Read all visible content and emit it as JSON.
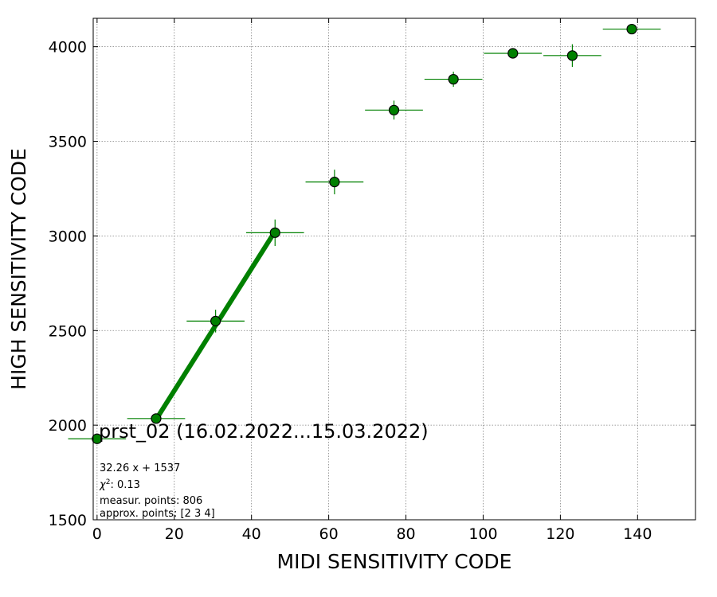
{
  "chart_data": {
    "type": "scatter",
    "title": "prst_02 (16.02.2022...15.03.2022)",
    "xlabel": "MIDI SENSITIVITY CODE",
    "ylabel": "HIGH SENSITIVITY CODE",
    "xlim": [
      -1,
      155
    ],
    "ylim": [
      1500,
      4150
    ],
    "xticks": [
      0,
      20,
      40,
      60,
      80,
      100,
      120,
      140
    ],
    "yticks": [
      1500,
      2000,
      2500,
      3000,
      3500,
      4000
    ],
    "grid": true,
    "series": [
      {
        "color": "#008000",
        "points": [
          {
            "x": 0,
            "y": 1928,
            "xerr": 7.5,
            "yerr": 0
          },
          {
            "x": 15.3,
            "y": 2035,
            "xerr": 7.5,
            "yerr": 0
          },
          {
            "x": 30.7,
            "y": 2550,
            "xerr": 7.5,
            "yerr": 60
          },
          {
            "x": 46.1,
            "y": 3017,
            "xerr": 7.5,
            "yerr": 70
          },
          {
            "x": 61.5,
            "y": 3285,
            "xerr": 7.5,
            "yerr": 65
          },
          {
            "x": 76.9,
            "y": 3665,
            "xerr": 7.5,
            "yerr": 50
          },
          {
            "x": 92.3,
            "y": 3828,
            "xerr": 7.5,
            "yerr": 40
          },
          {
            "x": 107.7,
            "y": 3965,
            "xerr": 7.5,
            "yerr": 0
          },
          {
            "x": 123.1,
            "y": 3953,
            "xerr": 7.5,
            "yerr": 60
          },
          {
            "x": 138.5,
            "y": 4093,
            "xerr": 7.5,
            "yerr": 0
          }
        ]
      }
    ],
    "fit": {
      "color": "#008000",
      "slope": 32.26,
      "intercept": 1537,
      "x_from": 15.3,
      "x_to": 46.1
    },
    "annotations": [
      "32.26 x + 1537",
      "measur. points: 806",
      "approx. points: [2 3 4]"
    ],
    "chi2": {
      "symbol": "χ",
      "power": "2",
      "value": ": 0.13"
    }
  }
}
